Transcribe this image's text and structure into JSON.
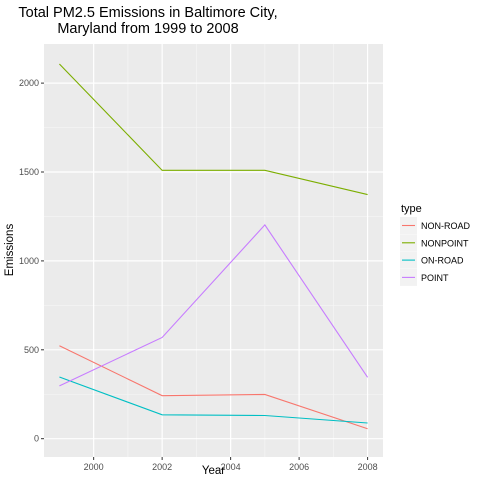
{
  "chart_data": {
    "type": "line",
    "title_lines": [
      "Total PM2.5 Emissions in Baltimore City,",
      "Maryland from 1999 to 2008"
    ],
    "xlabel": "Year",
    "ylabel": "Emissions",
    "x": [
      1999,
      2002,
      2005,
      2008
    ],
    "xlim": [
      1998.55,
      2008.45
    ],
    "ylim": [
      -103,
      2220
    ],
    "x_ticks": [
      2000,
      2002,
      2004,
      2006,
      2008
    ],
    "y_ticks": [
      0,
      500,
      1000,
      1500,
      2000
    ],
    "legend_title": "type",
    "legend_position": "right",
    "grid": true,
    "background": "#ebebeb",
    "series": [
      {
        "name": "NON-ROAD",
        "color": "#F8766D",
        "values": [
          522.9,
          242.0,
          248.9,
          55.8
        ]
      },
      {
        "name": "NONPOINT",
        "color": "#7CAE00",
        "values": [
          2107.6,
          1509.5,
          1509.5,
          1373.2
        ]
      },
      {
        "name": "ON-ROAD",
        "color": "#00BFC4",
        "values": [
          346.8,
          134.3,
          130.4,
          88.3
        ]
      },
      {
        "name": "POINT",
        "color": "#C77CFF",
        "values": [
          296.8,
          569.3,
          1202.5,
          344.98
        ]
      }
    ]
  }
}
